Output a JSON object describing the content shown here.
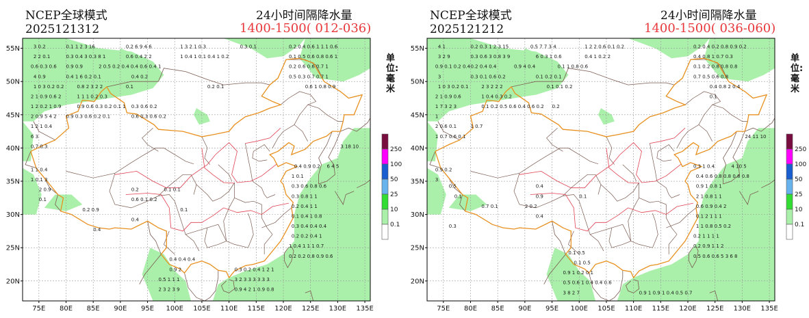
{
  "panels": [
    {
      "model_label": "NCEP全球模式",
      "run_label": "2025121312",
      "title": "24小时间隔降水量",
      "range_label": "1400-1500( 012-036)",
      "unit_label": "单位: 毫米"
    },
    {
      "model_label": "NCEP全球模式",
      "run_label": "2025121212",
      "title": "24小时间隔降水量",
      "range_label": "1400-1500( 036-060)",
      "unit_label": "单位: 毫米"
    }
  ],
  "lat_labels": [
    "55N",
    "50N",
    "45N",
    "40N",
    "35N",
    "30N",
    "25N",
    "20N"
  ],
  "lon_labels": [
    "75E",
    "80E",
    "85E",
    "90E",
    "95E",
    "100E",
    "105E",
    "110E",
    "115E",
    "120E",
    "125E",
    "130E",
    "135E"
  ],
  "legend": {
    "levels": [
      "250",
      "100",
      "50",
      "25",
      "10",
      "0.1"
    ],
    "colors": [
      "#7a0d3f",
      "#ff00ff",
      "#1a5fd0",
      "#66b3ee",
      "#33dd33",
      "#aaf0aa",
      "#ffffff"
    ]
  },
  "colors": {
    "precip_fill": "#aaf0aa",
    "grid": "#999999",
    "province_border": "#7a5a50",
    "country_border": "#e8901f",
    "river_border": "#e0404f",
    "title_red": "#e8383b"
  }
}
